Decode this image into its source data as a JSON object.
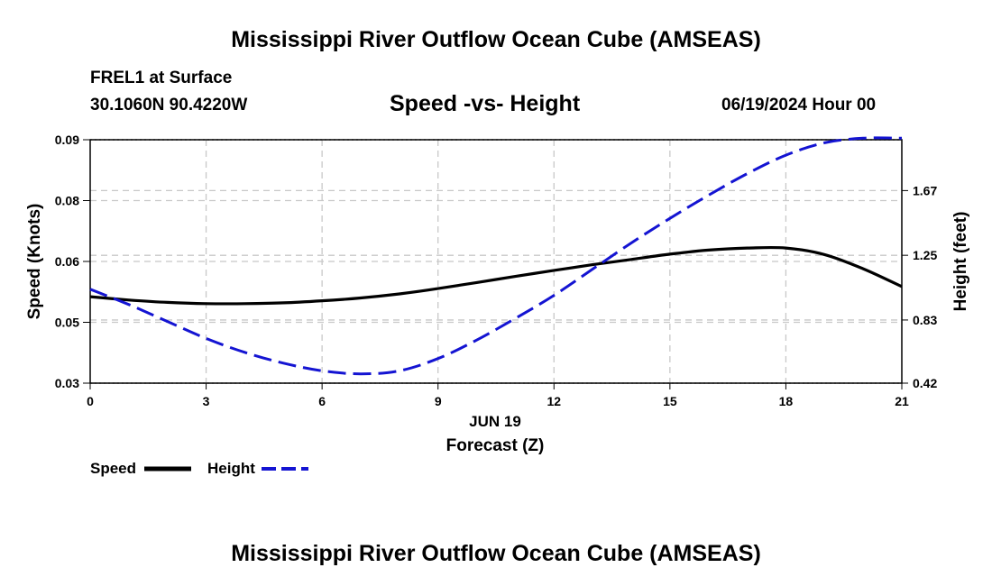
{
  "page": {
    "title": "Mississippi River Outflow Ocean Cube (AMSEAS)",
    "footer_title": "Mississippi River Outflow Ocean Cube (AMSEAS)",
    "station_line": "FREL1 at Surface",
    "coords_line": "30.1060N  90.4220W",
    "date_line": "06/19/2024 Hour 00"
  },
  "chart_data": {
    "type": "line",
    "title": "Speed -vs- Height",
    "xlabel": "Forecast (Z)",
    "date_label": "JUN 19",
    "ylabel": "Speed (Knots)",
    "y2label": "Height (feet)",
    "xlim": [
      0,
      21
    ],
    "ylim": [
      0.03,
      0.09
    ],
    "y2lim": [
      0.42,
      2.0
    ],
    "x_ticks": [
      "0",
      "3",
      "6",
      "9",
      "12",
      "15",
      "18",
      "21"
    ],
    "y_ticks": [
      "0.03",
      "0.05",
      "0.06",
      "0.08",
      "0.09"
    ],
    "y2_ticks": [
      "0.42",
      "0.83",
      "1.25",
      "1.67"
    ],
    "y2_tick_values": [
      0.42,
      0.83,
      1.25,
      1.67
    ],
    "grid": true,
    "series": [
      {
        "name": "Speed",
        "axis": "left",
        "color": "#000000",
        "dash": "solid",
        "x": [
          0,
          1,
          2,
          3,
          4,
          5,
          6,
          7,
          8,
          9,
          10,
          11,
          12,
          13,
          14,
          15,
          16,
          17,
          18,
          19,
          20,
          21
        ],
        "values": [
          0.0513,
          0.0505,
          0.0499,
          0.0496,
          0.0496,
          0.0498,
          0.0503,
          0.051,
          0.052,
          0.0533,
          0.0548,
          0.0563,
          0.0578,
          0.0592,
          0.0605,
          0.0618,
          0.0628,
          0.0633,
          0.0633,
          0.0617,
          0.0582,
          0.0538
        ]
      },
      {
        "name": "Height",
        "axis": "right",
        "color": "#1414d2",
        "dash": "dashed",
        "x": [
          0,
          1,
          2,
          3,
          4,
          5,
          6,
          7,
          8,
          9,
          10,
          11,
          12,
          13,
          14,
          15,
          16,
          17,
          18,
          19,
          20,
          21
        ],
        "values": [
          1.03,
          0.93,
          0.82,
          0.71,
          0.62,
          0.55,
          0.5,
          0.48,
          0.5,
          0.58,
          0.7,
          0.84,
          0.99,
          1.16,
          1.33,
          1.49,
          1.64,
          1.78,
          1.9,
          1.98,
          2.01,
          2.01
        ]
      }
    ],
    "legend": [
      "Speed",
      "Height"
    ]
  }
}
